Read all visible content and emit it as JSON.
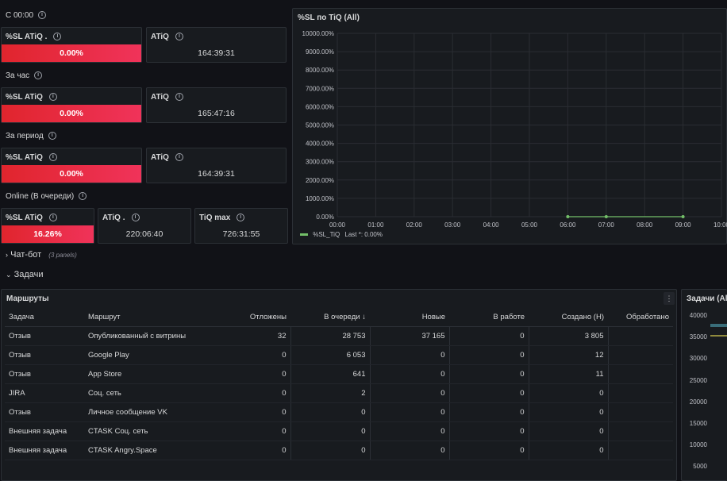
{
  "groups": {
    "since_midnight": "С 00:00",
    "per_hour": "За час",
    "per_period": "За период",
    "online": "Online (В очереди)"
  },
  "stats": [
    {
      "title": "%SL ATiQ .",
      "value": "0.00%"
    },
    {
      "title": "ATiQ",
      "value": "164:39:31"
    },
    {
      "title": "%SL ATiQ",
      "value": "0.00%"
    },
    {
      "title": "ATiQ",
      "value": "165:47:16"
    },
    {
      "title": "%SL ATiQ",
      "value": "0.00%"
    },
    {
      "title": "ATiQ",
      "value": "164:39:31"
    },
    {
      "title": "%SL ATiQ",
      "value": "16.26%"
    },
    {
      "title": "ATiQ .",
      "value": "220:06:40"
    },
    {
      "title": "TiQ max",
      "value": "726:31:55"
    }
  ],
  "chart_panel": {
    "title": "%SL по TiQ (All)"
  },
  "chart_data": {
    "type": "line",
    "x": [
      "00:00",
      "01:00",
      "02:00",
      "03:00",
      "04:00",
      "05:00",
      "06:00",
      "07:00",
      "08:00",
      "09:00",
      "10:00"
    ],
    "y_ticks": [
      "10000.00%",
      "9000.00%",
      "8000.00%",
      "7000.00%",
      "6000.00%",
      "5000.00%",
      "4000.00%",
      "3000.00%",
      "2000.00%",
      "1000.00%",
      "0.00%"
    ],
    "ylim": [
      0,
      10000
    ],
    "series": [
      {
        "name": "%SL_TiQ",
        "points": [
          {
            "x": "06:00",
            "y": 0
          },
          {
            "x": "07:00",
            "y": 0
          },
          {
            "x": "09:00",
            "y": 0
          }
        ]
      }
    ],
    "legend": {
      "name": "%SL_TiQ",
      "stat": "Last *: 0.00%"
    },
    "color": "#73bf69"
  },
  "rows": {
    "chatbot": {
      "label": "Чат-бот",
      "count": "(3 panels)"
    },
    "tasks": {
      "label": "Задачи"
    }
  },
  "table_panel": {
    "title": "Маршруты",
    "columns": [
      "Задача",
      "Маршрут",
      "Отложены",
      "В очереди",
      "Новые",
      "В работе",
      "Создано (Н)",
      "Обработано"
    ],
    "sort_indicator": "↓",
    "rows": [
      [
        "Отзыв",
        "Опубликованный с витрины",
        "32",
        "28 753",
        "37 165",
        "0",
        "3 805",
        ""
      ],
      [
        "Отзыв",
        "Google Play",
        "0",
        "6 053",
        "0",
        "0",
        "12",
        ""
      ],
      [
        "Отзыв",
        "App Store",
        "0",
        "641",
        "0",
        "0",
        "11",
        ""
      ],
      [
        "JIRA",
        "Соц. сеть",
        "0",
        "2",
        "0",
        "0",
        "0",
        ""
      ],
      [
        "Отзыв",
        "Личное сообщение VK",
        "0",
        "0",
        "0",
        "0",
        "0",
        ""
      ],
      [
        "Внешняя задача",
        "CTASK Соц. сеть",
        "0",
        "0",
        "0",
        "0",
        "0",
        ""
      ],
      [
        "Внешняя задача",
        "CTASK Angry.Space",
        "0",
        "0",
        "0",
        "0",
        "0",
        ""
      ]
    ]
  },
  "side_panel": {
    "title": "Задачи (All",
    "y_ticks": [
      "40000",
      "35000",
      "30000",
      "25000",
      "20000",
      "15000",
      "10000",
      "5000"
    ]
  }
}
